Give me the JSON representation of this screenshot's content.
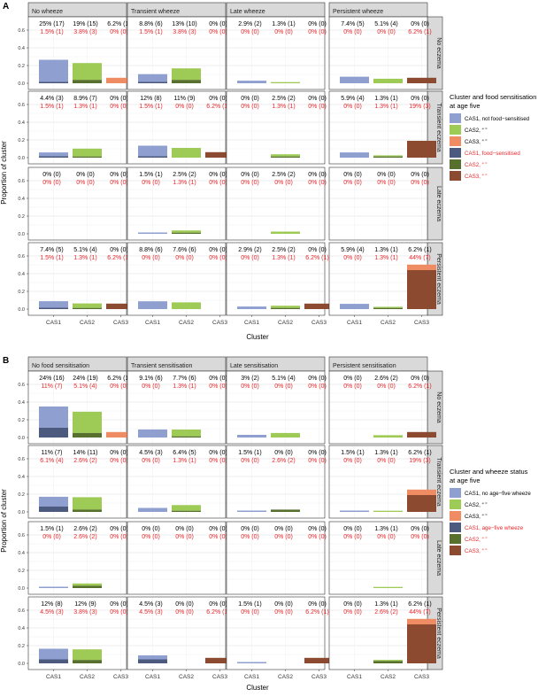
{
  "page": {
    "background": "#ffffff"
  },
  "figure": {
    "panel_tags": [
      "A",
      "B"
    ],
    "ylabel": "Proportion of cluster",
    "xlabel": "Cluster",
    "strip_bg": "#d9d9d9",
    "text_black": "#000000",
    "text_red": "#e8262b"
  },
  "chart_data": [
    {
      "type": "bar",
      "id": "A",
      "cols": [
        "No wheeze",
        "Transient wheeze",
        "Late wheeze",
        "Persistent wheeze"
      ],
      "rows": [
        "No eczema",
        "Transient eczema",
        "Late eczema",
        "Persistent eczema"
      ],
      "categories": [
        "CAS1",
        "CAS2",
        "CAS3"
      ],
      "yticks": [
        "0.0",
        "0.2",
        "0.4",
        "0.6"
      ],
      "ylim": [
        0,
        0.7
      ],
      "grid": true,
      "legend_position": "right",
      "legend": {
        "title": "Cluster and food sensitisation at age five",
        "title_lines": [
          "Cluster and food sensitisation",
          "at age five"
        ],
        "items": [
          {
            "label": "CAS1, not food−sensitised",
            "color": "#8e9fd0",
            "text": "black"
          },
          {
            "label": "CAS2, “ ”",
            "color": "#9dcb55",
            "text": "black"
          },
          {
            "label": "CAS3, “ ”",
            "color": "#ef8c63",
            "text": "black"
          },
          {
            "label": "CAS1, food−sensitised",
            "color": "#4b5a7e",
            "text": "red"
          },
          {
            "label": "CAS2, “ ”",
            "color": "#58702d",
            "text": "red"
          },
          {
            "label": "CAS3, “ ”",
            "color": "#8c4b31",
            "text": "red"
          }
        ]
      },
      "cells": [
        [
          {
            "black": [
              "25% (17)",
              "19% (15)",
              "6.2% (1)"
            ],
            "red": [
              "1.5% (1)",
              "3.8% (3)",
              "0% (0)"
            ],
            "top": [
              0.25,
              0.19,
              0.062
            ],
            "bottom": [
              0.015,
              0.038,
              0
            ]
          },
          {
            "black": [
              "8.8% (6)",
              "13% (10)",
              "0% (0)"
            ],
            "red": [
              "1.5% (1)",
              "3.8% (3)",
              "0% (0)"
            ],
            "top": [
              0.088,
              0.13,
              0
            ],
            "bottom": [
              0.015,
              0.038,
              0
            ]
          },
          {
            "black": [
              "2.9% (2)",
              "1.3% (1)",
              "0% (0)"
            ],
            "red": [
              "0% (0)",
              "0% (0)",
              "0% (0)"
            ],
            "top": [
              0.029,
              0.013,
              0
            ],
            "bottom": [
              0,
              0,
              0
            ]
          },
          {
            "black": [
              "7.4% (5)",
              "5.1% (4)",
              "0% (0)"
            ],
            "red": [
              "0% (0)",
              "0% (0)",
              "6.2% (1)"
            ],
            "top": [
              0.074,
              0.051,
              0
            ],
            "bottom": [
              0,
              0,
              0.062
            ]
          }
        ],
        [
          {
            "black": [
              "4.4% (3)",
              "8.9% (7)",
              "0% (0)"
            ],
            "red": [
              "1.5% (1)",
              "1.3% (1)",
              "0% (0)"
            ],
            "top": [
              0.044,
              0.089,
              0
            ],
            "bottom": [
              0.015,
              0.013,
              0
            ]
          },
          {
            "black": [
              "12% (8)",
              "11% (9)",
              "0% (0)"
            ],
            "red": [
              "1.5% (1)",
              "0% (0)",
              "6.2% (1)"
            ],
            "top": [
              0.12,
              0.11,
              0
            ],
            "bottom": [
              0.015,
              0,
              0.062
            ]
          },
          {
            "black": [
              "0% (0)",
              "2.5% (2)",
              "0% (0)"
            ],
            "red": [
              "0% (0)",
              "1.3% (1)",
              "0% (0)"
            ],
            "top": [
              0,
              0.025,
              0
            ],
            "bottom": [
              0,
              0.013,
              0
            ]
          },
          {
            "black": [
              "5.9% (4)",
              "1.3% (1)",
              "0% (0)"
            ],
            "red": [
              "0% (0)",
              "1.3% (1)",
              "19% (3)"
            ],
            "top": [
              0.059,
              0.013,
              0
            ],
            "bottom": [
              0,
              0.013,
              0.19
            ]
          }
        ],
        [
          {
            "black": [
              "0% (0)",
              "0% (0)",
              "0% (0)"
            ],
            "red": [
              "0% (0)",
              "0% (0)",
              "0% (0)"
            ],
            "top": [
              0,
              0,
              0
            ],
            "bottom": [
              0,
              0,
              0
            ]
          },
          {
            "black": [
              "1.5% (1)",
              "2.5% (2)",
              "0% (0)"
            ],
            "red": [
              "0% (0)",
              "1.3% (1)",
              "0% (0)"
            ],
            "top": [
              0.015,
              0.025,
              0
            ],
            "bottom": [
              0,
              0.013,
              0
            ]
          },
          {
            "black": [
              "0% (0)",
              "2.5% (2)",
              "0% (0)"
            ],
            "red": [
              "0% (0)",
              "0% (0)",
              "0% (0)"
            ],
            "top": [
              0,
              0.025,
              0
            ],
            "bottom": [
              0,
              0,
              0
            ]
          },
          {
            "black": [
              "0% (0)",
              "0% (0)",
              "0% (0)"
            ],
            "red": [
              "0% (0)",
              "0% (0)",
              "0% (0)"
            ],
            "top": [
              0,
              0,
              0
            ],
            "bottom": [
              0,
              0,
              0
            ]
          }
        ],
        [
          {
            "black": [
              "7.4% (5)",
              "5.1% (4)",
              "0% (0)"
            ],
            "red": [
              "1.5% (1)",
              "1.3% (1)",
              "6.2% (1)"
            ],
            "top": [
              0.074,
              0.051,
              0
            ],
            "bottom": [
              0.015,
              0.013,
              0.062
            ]
          },
          {
            "black": [
              "8.8% (6)",
              "7.6% (6)",
              "0% (0)"
            ],
            "red": [
              "0% (0)",
              "0% (0)",
              "0% (0)"
            ],
            "top": [
              0.088,
              0.076,
              0
            ],
            "bottom": [
              0,
              0,
              0
            ]
          },
          {
            "black": [
              "2.9% (2)",
              "2.5% (2)",
              "0% (0)"
            ],
            "red": [
              "0% (0)",
              "1.3% (1)",
              "6.2% (1)"
            ],
            "top": [
              0.029,
              0.025,
              0
            ],
            "bottom": [
              0,
              0.013,
              0.062
            ]
          },
          {
            "black": [
              "5.9% (4)",
              "1.3% (1)",
              "6.2% (1)"
            ],
            "red": [
              "0% (0)",
              "1.3% (1)",
              "44% (7)"
            ],
            "top": [
              0.059,
              0.013,
              0.062
            ],
            "bottom": [
              0,
              0.013,
              0.44
            ]
          }
        ]
      ]
    },
    {
      "type": "bar",
      "id": "B",
      "cols": [
        "No food sensitisation",
        "Transient sensitisation",
        "Late sensitisation",
        "Persistent sensitisation"
      ],
      "rows": [
        "No eczema",
        "Transient eczema",
        "Late eczema",
        "Persistent eczema"
      ],
      "categories": [
        "CAS1",
        "CAS2",
        "CAS3"
      ],
      "yticks": [
        "0.0",
        "0.2",
        "0.4",
        "0.6"
      ],
      "ylim": [
        0,
        0.7
      ],
      "grid": true,
      "legend_position": "right",
      "legend": {
        "title": "Cluster and wheeze status at age five",
        "title_lines": [
          "Cluster and wheeze status",
          "at age five"
        ],
        "items": [
          {
            "label": "CAS1, no age−five wheeze",
            "color": "#8e9fd0",
            "text": "black"
          },
          {
            "label": "CAS2, “ ”",
            "color": "#9dcb55",
            "text": "black"
          },
          {
            "label": "CAS3, “ ”",
            "color": "#ef8c63",
            "text": "black"
          },
          {
            "label": "CAS1, age−five wheeze",
            "color": "#4b5a7e",
            "text": "red"
          },
          {
            "label": "CAS2, “ ”",
            "color": "#58702d",
            "text": "red"
          },
          {
            "label": "CAS3, “ ”",
            "color": "#8c4b31",
            "text": "red"
          }
        ]
      },
      "cells": [
        [
          {
            "black": [
              "24% (16)",
              "24% (19)",
              "6.2% (1)"
            ],
            "red": [
              "11% (7)",
              "5.1% (4)",
              "0% (0)"
            ],
            "top": [
              0.24,
              0.24,
              0.062
            ],
            "bottom": [
              0.11,
              0.051,
              0
            ]
          },
          {
            "black": [
              "9.1% (6)",
              "7.7% (6)",
              "0% (0)"
            ],
            "red": [
              "0% (0)",
              "1.3% (1)",
              "0% (0)"
            ],
            "top": [
              0.091,
              0.077,
              0
            ],
            "bottom": [
              0,
              0.013,
              0
            ]
          },
          {
            "black": [
              "3% (2)",
              "5.1% (4)",
              "0% (0)"
            ],
            "red": [
              "0% (0)",
              "0% (0)",
              "0% (0)"
            ],
            "top": [
              0.03,
              0.051,
              0
            ],
            "bottom": [
              0,
              0,
              0
            ]
          },
          {
            "black": [
              "0% (0)",
              "2.6% (2)",
              "0% (0)"
            ],
            "red": [
              "0% (0)",
              "0% (0)",
              "6.2% (1)"
            ],
            "top": [
              0,
              0.026,
              0
            ],
            "bottom": [
              0,
              0,
              0.062
            ]
          }
        ],
        [
          {
            "black": [
              "11% (7)",
              "14% (11)",
              "0% (0)"
            ],
            "red": [
              "6.1% (4)",
              "2.6% (2)",
              "0% (0)"
            ],
            "top": [
              0.11,
              0.14,
              0
            ],
            "bottom": [
              0.061,
              0.026,
              0
            ]
          },
          {
            "black": [
              "4.5% (3)",
              "6.4% (5)",
              "0% (0)"
            ],
            "red": [
              "0% (0)",
              "1.3% (1)",
              "0% (0)"
            ],
            "top": [
              0.045,
              0.064,
              0
            ],
            "bottom": [
              0,
              0.013,
              0
            ]
          },
          {
            "black": [
              "1.5% (1)",
              "0% (0)",
              "0% (0)"
            ],
            "red": [
              "0% (0)",
              "2.6% (2)",
              "0% (0)"
            ],
            "top": [
              0.015,
              0,
              0
            ],
            "bottom": [
              0,
              0.026,
              0
            ]
          },
          {
            "black": [
              "1.5% (1)",
              "1.3% (1)",
              "6.2% (1)"
            ],
            "red": [
              "0% (0)",
              "0% (0)",
              "19% (3)"
            ],
            "top": [
              0.015,
              0.013,
              0.062
            ],
            "bottom": [
              0,
              0,
              0.19
            ]
          }
        ],
        [
          {
            "black": [
              "1.5% (1)",
              "2.6% (2)",
              "0% (0)"
            ],
            "red": [
              "0% (0)",
              "2.6% (2)",
              "0% (0)"
            ],
            "top": [
              0.015,
              0.026,
              0
            ],
            "bottom": [
              0,
              0.026,
              0
            ]
          },
          {
            "black": [
              "0% (0)",
              "0% (0)",
              "0% (0)"
            ],
            "red": [
              "0% (0)",
              "0% (0)",
              "0% (0)"
            ],
            "top": [
              0,
              0,
              0
            ],
            "bottom": [
              0,
              0,
              0
            ]
          },
          {
            "black": [
              "0% (0)",
              "0% (0)",
              "0% (0)"
            ],
            "red": [
              "0% (0)",
              "0% (0)",
              "0% (0)"
            ],
            "top": [
              0,
              0,
              0
            ],
            "bottom": [
              0,
              0,
              0
            ]
          },
          {
            "black": [
              "0% (0)",
              "1.3% (1)",
              "0% (0)"
            ],
            "red": [
              "0% (0)",
              "0% (0)",
              "0% (0)"
            ],
            "top": [
              0,
              0.013,
              0
            ],
            "bottom": [
              0,
              0,
              0
            ]
          }
        ],
        [
          {
            "black": [
              "12% (8)",
              "12% (9)",
              "0% (0)"
            ],
            "red": [
              "4.5% (3)",
              "3.8% (3)",
              "0% (0)"
            ],
            "top": [
              0.12,
              0.12,
              0
            ],
            "bottom": [
              0.045,
              0.038,
              0
            ]
          },
          {
            "black": [
              "4.5% (3)",
              "0% (0)",
              "0% (0)"
            ],
            "red": [
              "4.5% (3)",
              "0% (0)",
              "6.2% (1)"
            ],
            "top": [
              0.045,
              0,
              0
            ],
            "bottom": [
              0.045,
              0,
              0.062
            ]
          },
          {
            "black": [
              "1.5% (1)",
              "0% (0)",
              "0% (0)"
            ],
            "red": [
              "0% (0)",
              "0% (0)",
              "6.2% (1)"
            ],
            "top": [
              0.015,
              0,
              0
            ],
            "bottom": [
              0,
              0,
              0.062
            ]
          },
          {
            "black": [
              "0% (0)",
              "1.3% (1)",
              "6.2% (1)"
            ],
            "red": [
              "0% (0)",
              "2.6% (2)",
              "44% (7)"
            ],
            "top": [
              0,
              0.013,
              0.062
            ],
            "bottom": [
              0,
              0.026,
              0.44
            ]
          }
        ]
      ]
    }
  ]
}
